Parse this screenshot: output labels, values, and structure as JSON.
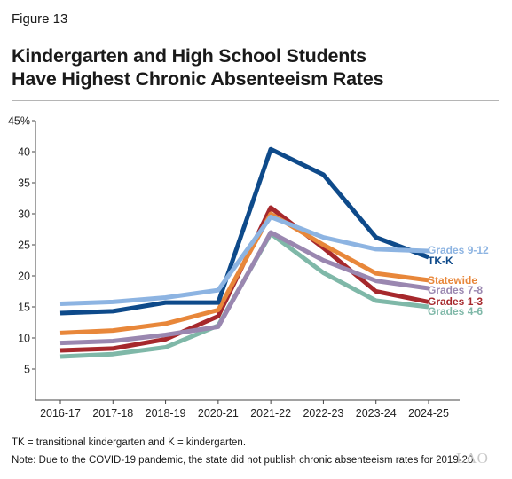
{
  "figure_label": "Figure 13",
  "title_line1": "Kindergarten and High School Students",
  "title_line2": "Have Highest Chronic Absenteeism Rates",
  "notes": [
    "TK = transitional kindergarten and K = kindergarten.",
    "Note: Due to the COVID-19 pandemic, the state did not publish chronic absenteeism rates for 2019-20."
  ],
  "logo": "LAO",
  "chart_data": {
    "type": "line",
    "title": "Kindergarten and High School Students Have Highest Chronic Absenteeism Rates",
    "xlabel": "",
    "ylabel": "",
    "categories": [
      "2016-17",
      "2017-18",
      "2018-19",
      "2020-21",
      "2021-22",
      "2022-23",
      "2023-24",
      "2024-25"
    ],
    "ylim": [
      0,
      45
    ],
    "yticks": [
      5,
      10,
      15,
      20,
      25,
      30,
      35,
      40,
      45
    ],
    "ytick_labels": [
      "5",
      "10",
      "15",
      "20",
      "25",
      "30",
      "35",
      "40",
      "45%"
    ],
    "grid": false,
    "legend": "end-of-line labels",
    "series": [
      {
        "name": "Grades 4-6",
        "color": "#7fb8a8",
        "values": [
          7.0,
          7.4,
          8.5,
          12.0,
          26.8,
          20.5,
          16.0,
          15.0
        ]
      },
      {
        "name": "Grades 1-3",
        "color": "#a6282c",
        "values": [
          8.0,
          8.3,
          9.8,
          13.5,
          31.0,
          24.5,
          17.5,
          15.8
        ]
      },
      {
        "name": "Grades 7-8",
        "color": "#9a87b0",
        "values": [
          9.2,
          9.5,
          10.5,
          11.8,
          27.0,
          22.5,
          19.2,
          18.0
        ]
      },
      {
        "name": "Statewide",
        "color": "#e8873a",
        "values": [
          10.8,
          11.2,
          12.3,
          14.5,
          30.0,
          25.0,
          20.4,
          19.3
        ]
      },
      {
        "name": "TK-K",
        "color": "#0e4a8a",
        "values": [
          14.0,
          14.3,
          15.7,
          15.7,
          40.4,
          36.3,
          26.2,
          23.0
        ]
      },
      {
        "name": "Grades 9-12",
        "color": "#8db4e2",
        "values": [
          15.5,
          15.8,
          16.5,
          17.7,
          29.5,
          26.2,
          24.3,
          24.0
        ]
      }
    ]
  }
}
